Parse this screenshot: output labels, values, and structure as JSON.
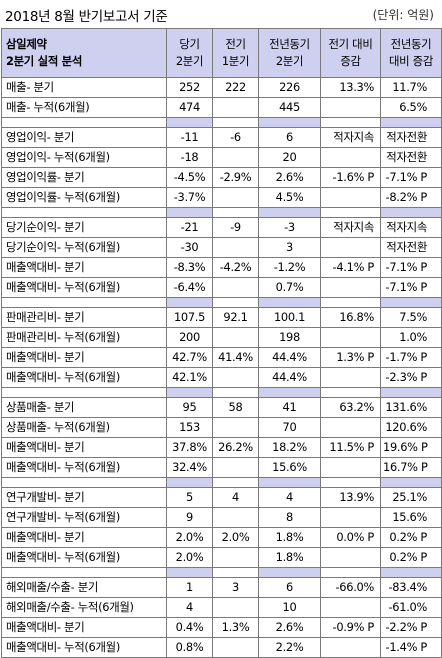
{
  "title": "2018년 8월 반기보고서 기준",
  "unit": "(단위: 억원)",
  "header": {
    "company": "삼일제약",
    "subtitle": "2분기 실적 분석",
    "col1": [
      "당기",
      "2분기"
    ],
    "col2": [
      "전기",
      "1분기"
    ],
    "col3": [
      "전년동기",
      "2분기"
    ],
    "col4": [
      "전기 대비",
      "증감"
    ],
    "col5": [
      "전년동기",
      "대비 증감"
    ]
  },
  "groups": [
    {
      "rows": [
        [
          "매출- 분기",
          "252",
          "222",
          "226",
          "13.3%",
          "11.7%"
        ],
        [
          "매출- 누적(6개월)",
          "474",
          "",
          "445",
          "",
          "6.5%"
        ]
      ]
    },
    {
      "rows": [
        [
          "영업이익- 분기",
          "-11",
          "-6",
          "6",
          "적자지속",
          "적자전환"
        ],
        [
          "영업이익- 누적(6개월)",
          "-18",
          "",
          "20",
          "",
          "적자전환"
        ],
        [
          "영업이익률- 분기",
          "-4.5%",
          "-2.9%",
          "2.6%",
          "-1.6% P",
          "-7.1% P"
        ],
        [
          "영업이익률- 누적(6개월)",
          "-3.7%",
          "",
          "4.5%",
          "",
          "-8.2% P"
        ]
      ]
    },
    {
      "rows": [
        [
          "당기순이익- 분기",
          "-21",
          "-9",
          "-3",
          "적자지속",
          "적자지속"
        ],
        [
          "당기순이익- 누적(6개월)",
          "-30",
          "",
          "3",
          "",
          "적자전환"
        ],
        [
          "매출액대비- 분기",
          "-8.3%",
          "-4.2%",
          "-1.2%",
          "-4.1% P",
          "-7.1% P"
        ],
        [
          "매출액대비- 누적(6개월)",
          "-6.4%",
          "",
          "0.7%",
          "",
          "-7.1% P"
        ]
      ]
    },
    {
      "rows": [
        [
          "판매관리비- 분기",
          "107.5",
          "92.1",
          "100.1",
          "16.8%",
          "7.5%"
        ],
        [
          "판매관리비- 누적(6개월)",
          "200",
          "",
          "198",
          "",
          "1.0%"
        ],
        [
          "매출액대비- 분기",
          "42.7%",
          "41.4%",
          "44.4%",
          "1.3% P",
          "-1.7% P"
        ],
        [
          "매출액대비- 누적(6개월)",
          "42.1%",
          "",
          "44.4%",
          "",
          "-2.3% P"
        ]
      ]
    },
    {
      "rows": [
        [
          "상품매출- 분기",
          "95",
          "58",
          "41",
          "63.2%",
          "131.6%"
        ],
        [
          "상품매출- 누적(6개월)",
          "153",
          "",
          "70",
          "",
          "120.6%"
        ],
        [
          "매출액대비- 분기",
          "37.8%",
          "26.2%",
          "18.2%",
          "11.5% P",
          "19.6% P"
        ],
        [
          "매출액대비- 누적(6개월)",
          "32.4%",
          "",
          "15.6%",
          "",
          "16.7% P"
        ]
      ]
    },
    {
      "rows": [
        [
          "연구개발비- 분기",
          "5",
          "4",
          "4",
          "13.9%",
          "25.1%"
        ],
        [
          "연구개발비- 누적(6개월)",
          "9",
          "",
          "8",
          "",
          "15.6%"
        ],
        [
          "매출액대비- 분기",
          "2.0%",
          "2.0%",
          "1.8%",
          "0.0% P",
          "0.2% P"
        ],
        [
          "매출액대비- 누적(6개월)",
          "2.0%",
          "",
          "1.8%",
          "",
          "0.2% P"
        ]
      ]
    },
    {
      "rows": [
        [
          "해외매출/수출- 분기",
          "1",
          "3",
          "6",
          "-66.0%",
          "-83.4%"
        ],
        [
          "해외매출/수출- 누적(6개월)",
          "4",
          "",
          "10",
          "",
          "-61.0%"
        ],
        [
          "매출액대비- 분기",
          "0.4%",
          "1.3%",
          "2.6%",
          "-0.9% P",
          "-2.2% P"
        ],
        [
          "매출액대비- 누적(6개월)",
          "0.8%",
          "",
          "2.2%",
          "",
          "-1.4% P"
        ]
      ]
    }
  ]
}
